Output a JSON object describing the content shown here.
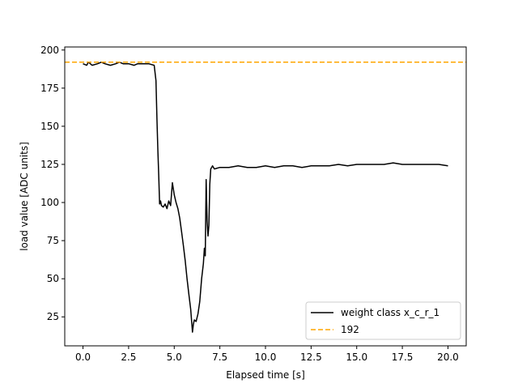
{
  "chart_data": {
    "type": "line",
    "xlabel": "Elapsed time [s]",
    "ylabel": "load value [ADC units]",
    "xlim": [
      -1.0,
      21.0
    ],
    "ylim": [
      6,
      202
    ],
    "xticks": [
      0.0,
      2.5,
      5.0,
      7.5,
      10.0,
      12.5,
      15.0,
      17.5,
      20.0
    ],
    "xtick_labels": [
      "0.0",
      "2.5",
      "5.0",
      "7.5",
      "10.0",
      "12.5",
      "15.0",
      "17.5",
      "20.0"
    ],
    "yticks": [
      25,
      50,
      75,
      100,
      125,
      150,
      175,
      200
    ],
    "ytick_labels": [
      "25",
      "50",
      "75",
      "100",
      "125",
      "150",
      "175",
      "200"
    ],
    "grid": false,
    "legend_position": "lower-right",
    "series": [
      {
        "name": "weight class x_c_r_1",
        "color": "#000000",
        "style": "solid",
        "x": [
          0.0,
          0.2,
          0.3,
          0.5,
          0.8,
          1.0,
          1.2,
          1.5,
          1.8,
          2.0,
          2.2,
          2.5,
          2.8,
          3.0,
          3.3,
          3.6,
          3.9,
          4.0,
          4.05,
          4.1,
          4.15,
          4.2,
          4.25,
          4.3,
          4.4,
          4.5,
          4.6,
          4.7,
          4.8,
          4.9,
          5.0,
          5.1,
          5.2,
          5.3,
          5.4,
          5.5,
          5.6,
          5.7,
          5.8,
          5.9,
          6.0,
          6.05,
          6.1,
          6.2,
          6.3,
          6.4,
          6.5,
          6.6,
          6.65,
          6.7,
          6.75,
          6.8,
          6.85,
          6.9,
          6.95,
          7.0,
          7.05,
          7.1,
          7.15,
          7.2,
          7.5,
          8.0,
          8.5,
          9.0,
          9.5,
          10.0,
          10.5,
          11.0,
          11.5,
          12.0,
          12.5,
          13.0,
          13.5,
          14.0,
          14.5,
          15.0,
          15.5,
          16.0,
          16.5,
          17.0,
          17.5,
          18.0,
          18.5,
          19.0,
          19.5,
          20.0
        ],
        "y": [
          191,
          190,
          192,
          190,
          191,
          192,
          191,
          190,
          191,
          192,
          191,
          191,
          190,
          191,
          191,
          191,
          190,
          180,
          155,
          135,
          118,
          99,
          101,
          98,
          97,
          99,
          96,
          101,
          98,
          113,
          105,
          100,
          96,
          90,
          81,
          72,
          62,
          50,
          40,
          30,
          15,
          20,
          23,
          22,
          27,
          35,
          50,
          60,
          70,
          65,
          115,
          88,
          78,
          85,
          112,
          122,
          123,
          124,
          123,
          122,
          123,
          123,
          124,
          123,
          123,
          124,
          123,
          124,
          124,
          123,
          124,
          124,
          124,
          125,
          124,
          125,
          125,
          125,
          125,
          126,
          125,
          125,
          125,
          125,
          125,
          124
        ]
      },
      {
        "name": "192",
        "color": "#FFA500",
        "style": "dashed",
        "x": [
          -1.0,
          21.0
        ],
        "y": [
          192,
          192
        ]
      }
    ]
  }
}
